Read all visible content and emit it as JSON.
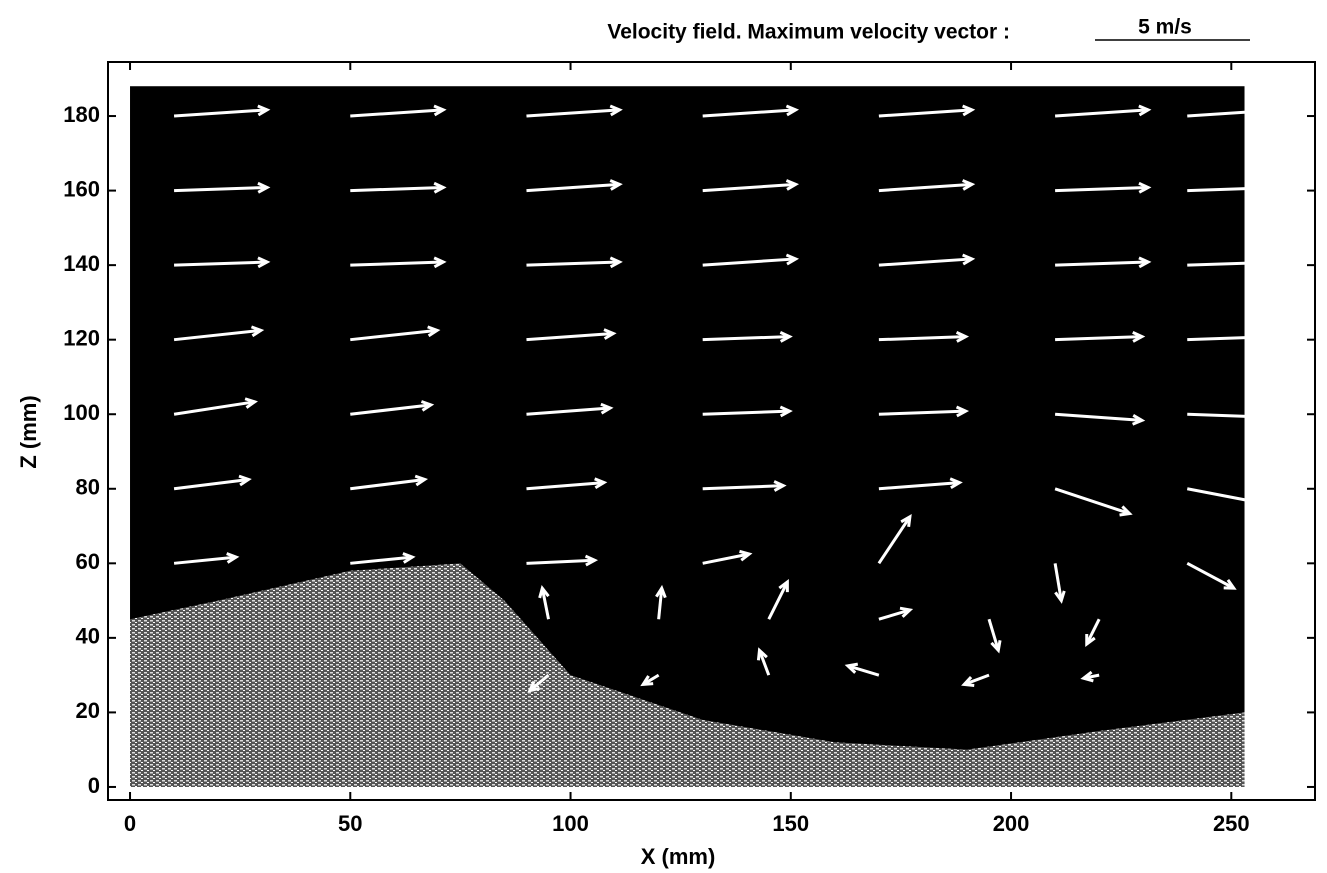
{
  "chart_data": {
    "type": "quiver",
    "title": "Velocity field. Maximum velocity vector :",
    "scale": {
      "value": 5,
      "label": "5 m/s"
    },
    "x_label": "X (mm)",
    "y_label": "Z (mm)",
    "xlim": [
      -5,
      269
    ],
    "ylim": [
      -3.5,
      194.5
    ],
    "xticks": [
      0,
      50,
      100,
      150,
      200,
      250
    ],
    "yticks": [
      0,
      20,
      40,
      60,
      80,
      100,
      120,
      140,
      160,
      180
    ],
    "color": "#ffffff",
    "vectors": {
      "x": [
        10,
        50,
        90,
        130,
        170,
        210,
        240,
        10,
        50,
        90,
        130,
        170,
        210,
        240,
        10,
        50,
        90,
        130,
        170,
        210,
        240,
        10,
        50,
        90,
        130,
        170,
        210,
        240,
        10,
        50,
        90,
        130,
        170,
        210,
        240,
        10,
        50,
        90,
        130,
        170,
        210,
        240,
        10,
        50,
        90,
        130,
        170,
        210,
        240,
        95,
        120,
        145,
        170,
        195,
        220,
        95,
        120,
        145,
        170,
        195,
        220
      ],
      "z": [
        180,
        180,
        180,
        180,
        180,
        180,
        180,
        160,
        160,
        160,
        160,
        160,
        160,
        160,
        140,
        140,
        140,
        140,
        140,
        140,
        140,
        120,
        120,
        120,
        120,
        120,
        120,
        120,
        100,
        100,
        100,
        100,
        100,
        100,
        100,
        80,
        80,
        80,
        80,
        80,
        80,
        80,
        60,
        60,
        60,
        60,
        60,
        60,
        60,
        45,
        45,
        45,
        45,
        45,
        45,
        30,
        30,
        30,
        30,
        30,
        30
      ],
      "u": [
        3,
        3,
        3,
        3,
        3,
        3,
        3,
        3,
        3,
        3,
        3,
        3,
        3,
        3,
        3,
        3,
        3,
        3,
        3,
        3,
        3,
        2.8,
        2.8,
        2.8,
        2.8,
        2.8,
        2.8,
        2.8,
        2.6,
        2.6,
        2.7,
        2.8,
        2.8,
        2.8,
        2.8,
        2.4,
        2.4,
        2.5,
        2.6,
        2.6,
        2.4,
        2.6,
        2.0,
        2.0,
        2.2,
        1.5,
        1.0,
        0.2,
        1.5,
        -0.2,
        0.1,
        0.6,
        1.0,
        0.3,
        -0.4,
        -0.6,
        -0.5,
        -0.3,
        -1.0,
        -0.8,
        -0.5
      ],
      "w": [
        0.2,
        0.2,
        0.2,
        0.2,
        0.2,
        0.2,
        0.2,
        0.1,
        0.1,
        0.2,
        0.2,
        0.2,
        0.1,
        0.1,
        0.1,
        0.1,
        0.1,
        0.2,
        0.2,
        0.1,
        0.1,
        0.3,
        0.3,
        0.2,
        0.1,
        0.1,
        0.1,
        0.1,
        0.4,
        0.3,
        0.2,
        0.1,
        0.1,
        -0.2,
        -0.1,
        0.3,
        0.3,
        0.2,
        0.1,
        0.2,
        -0.8,
        -0.5,
        0.2,
        0.2,
        0.1,
        0.3,
        1.5,
        -1.2,
        -0.8,
        1.0,
        1.0,
        1.2,
        0.3,
        -1.0,
        -0.8,
        -0.5,
        -0.3,
        0.8,
        0.3,
        -0.3,
        -0.1
      ]
    }
  }
}
